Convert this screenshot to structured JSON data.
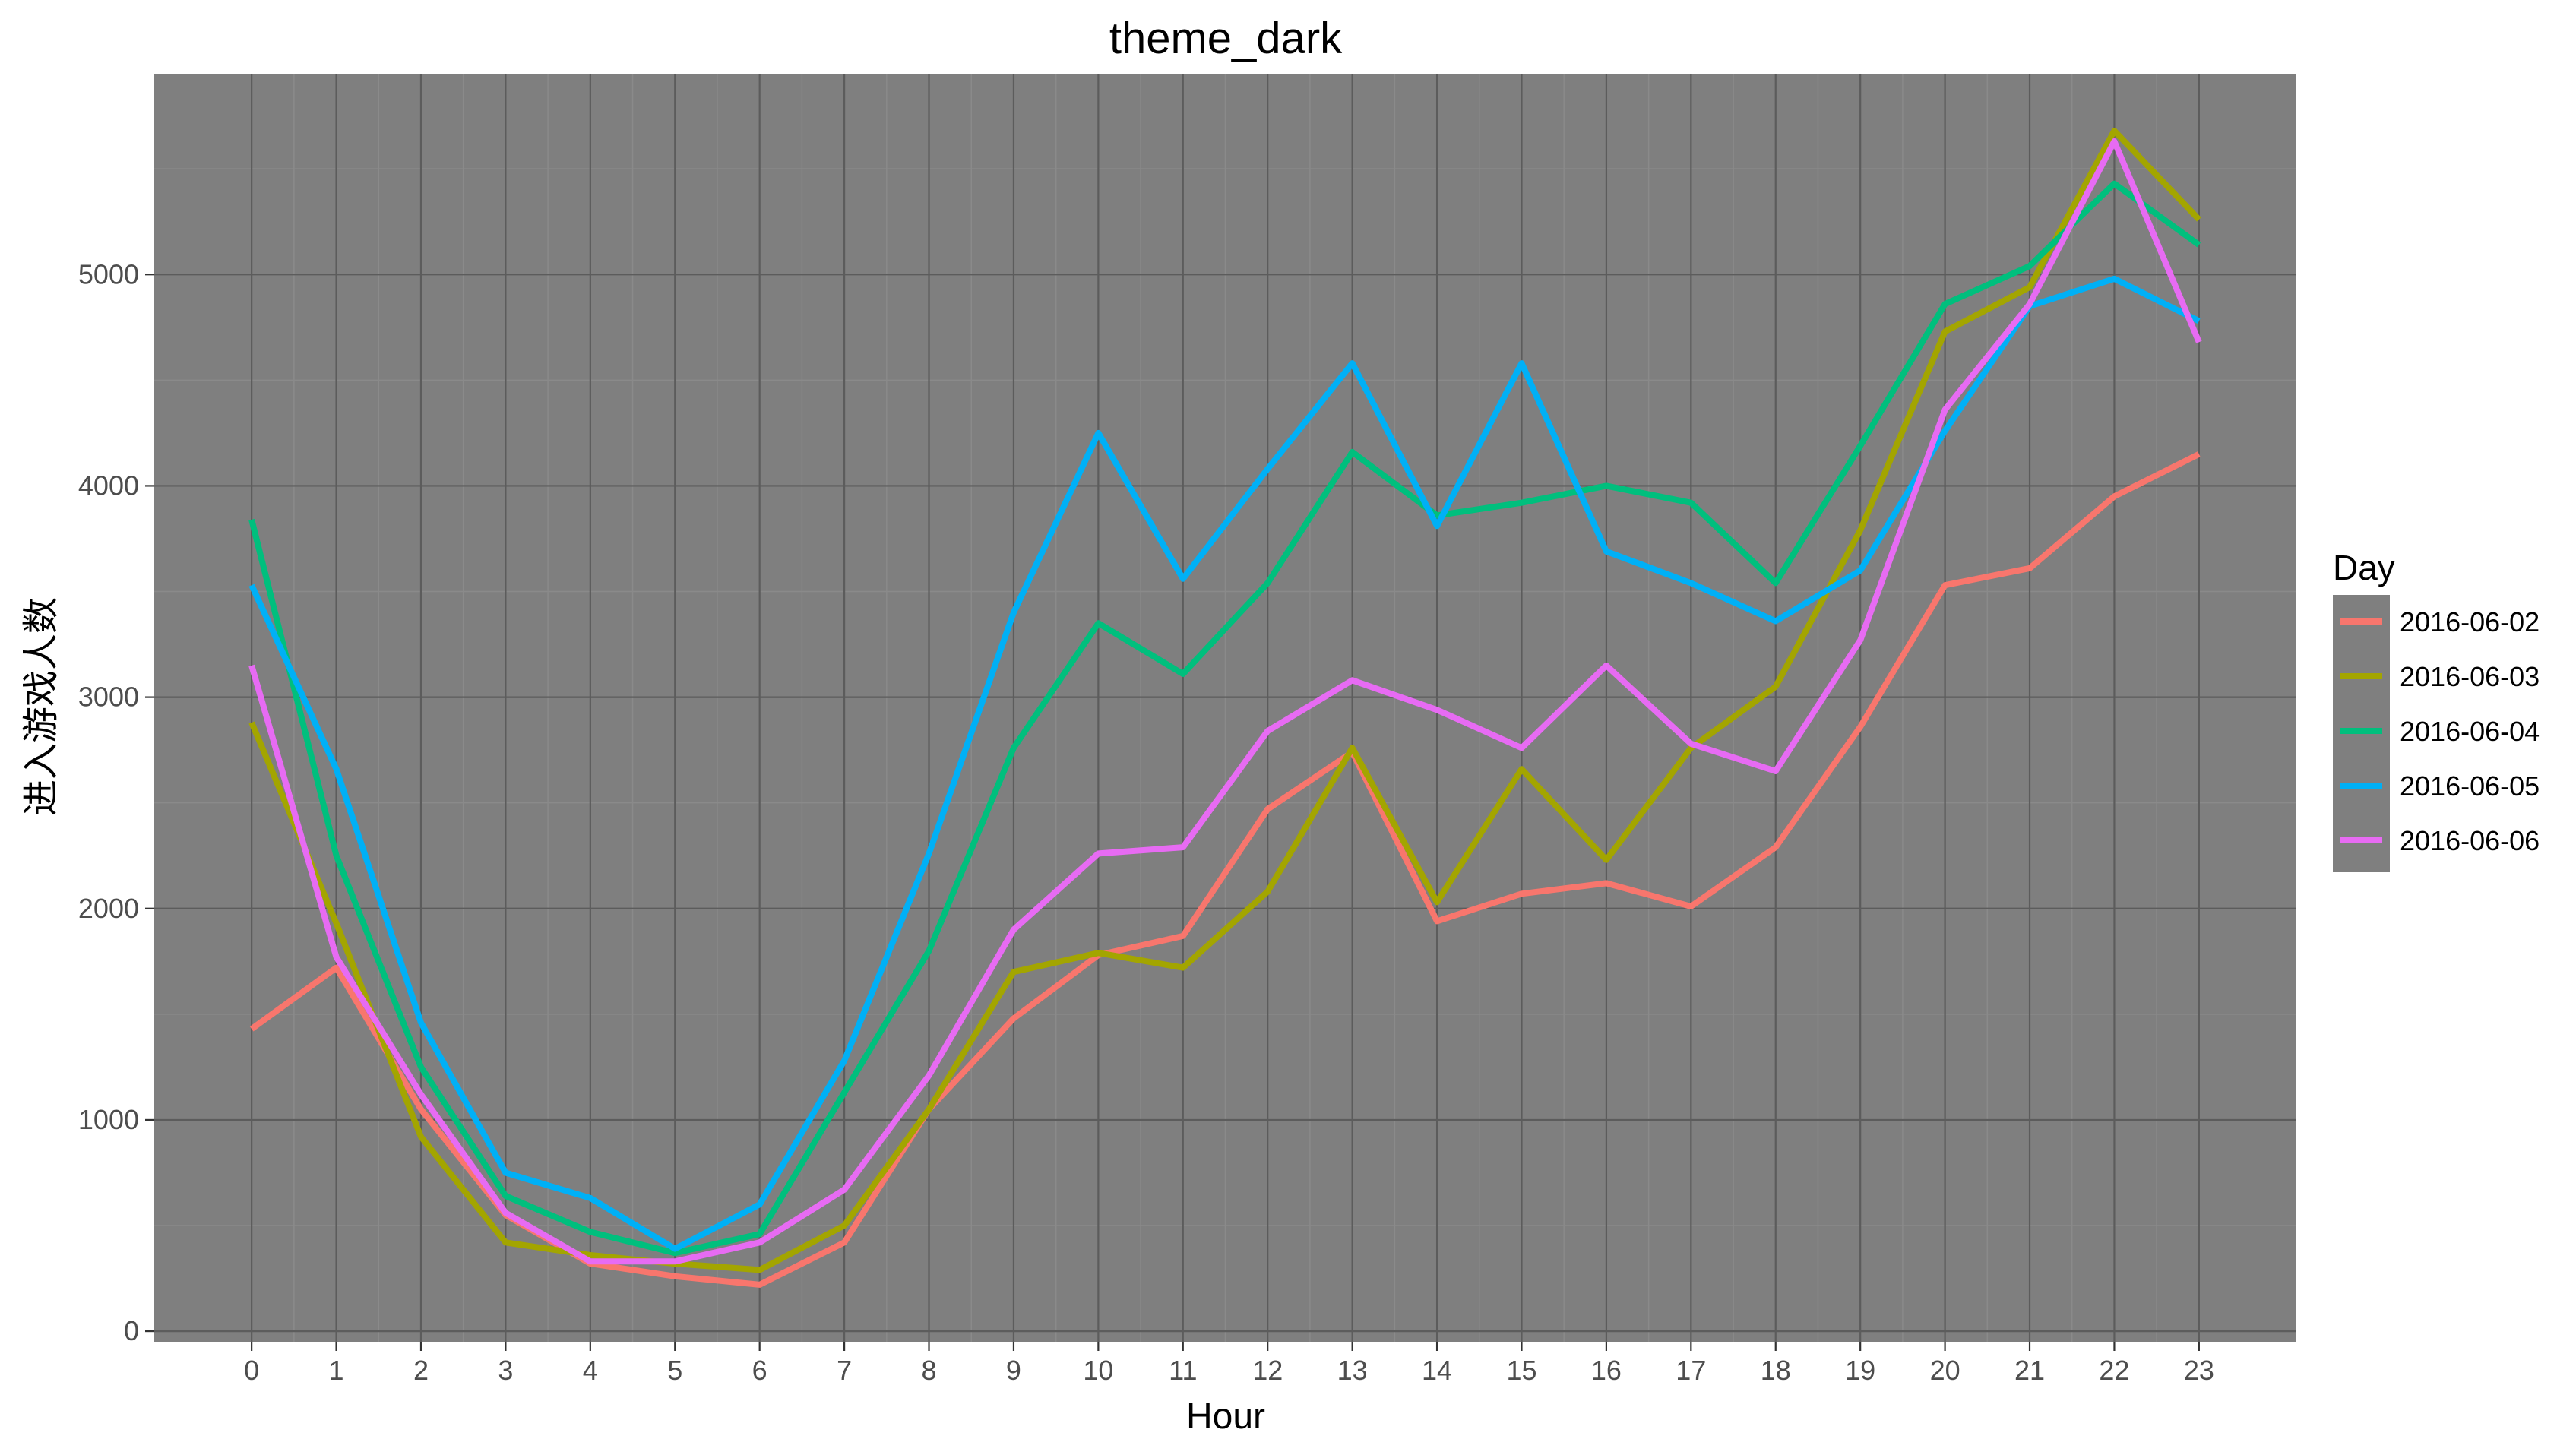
{
  "chart_data": {
    "type": "line",
    "title": "theme_dark",
    "xlabel": "Hour",
    "ylabel": "进入游戏人数",
    "x": [
      0,
      1,
      2,
      3,
      4,
      5,
      6,
      7,
      8,
      9,
      10,
      11,
      12,
      13,
      14,
      15,
      16,
      17,
      18,
      19,
      20,
      21,
      22,
      23
    ],
    "xticks": [
      "0",
      "1",
      "2",
      "3",
      "4",
      "5",
      "6",
      "7",
      "8",
      "9",
      "10",
      "11",
      "12",
      "13",
      "14",
      "15",
      "16",
      "17",
      "18",
      "19",
      "20",
      "21",
      "22",
      "23"
    ],
    "yticks": [
      "0",
      "1000",
      "2000",
      "3000",
      "4000",
      "5000"
    ],
    "xlim": [
      -1.15,
      24.15
    ],
    "ylim": [
      -50,
      5950
    ],
    "grid": true,
    "legend": {
      "title": "Day",
      "position": "right"
    },
    "background": "#7f7f7f",
    "series": [
      {
        "name": "2016-06-02",
        "color": "#F8766D",
        "values": [
          1430,
          1720,
          1050,
          550,
          320,
          260,
          220,
          420,
          1050,
          1480,
          1780,
          1870,
          2470,
          2740,
          1940,
          2070,
          2120,
          2010,
          2290,
          2860,
          3530,
          3610,
          3950,
          4150
        ]
      },
      {
        "name": "2016-06-03",
        "color": "#A3A500",
        "values": [
          2880,
          1930,
          920,
          420,
          360,
          320,
          290,
          500,
          1050,
          1700,
          1790,
          1720,
          2080,
          2760,
          2030,
          2660,
          2230,
          2760,
          3050,
          3790,
          4730,
          4940,
          5680,
          5260
        ]
      },
      {
        "name": "2016-06-04",
        "color": "#00BF7D",
        "values": [
          3840,
          2250,
          1250,
          640,
          470,
          370,
          460,
          1130,
          1800,
          2760,
          3350,
          3110,
          3540,
          4160,
          3860,
          3920,
          4000,
          3920,
          3540,
          4190,
          4860,
          5040,
          5430,
          5140
        ]
      },
      {
        "name": "2016-06-05",
        "color": "#00B0F6",
        "values": [
          3530,
          2660,
          1460,
          750,
          630,
          390,
          600,
          1280,
          2260,
          3400,
          4250,
          3560,
          4080,
          4580,
          3810,
          4580,
          3690,
          3540,
          3360,
          3600,
          4260,
          4850,
          4980,
          4780
        ]
      },
      {
        "name": "2016-06-06",
        "color": "#E76BF3",
        "values": [
          3150,
          1770,
          1120,
          560,
          330,
          330,
          420,
          670,
          1210,
          1900,
          2260,
          2290,
          2840,
          3080,
          2940,
          2760,
          3150,
          2780,
          2650,
          3270,
          4360,
          4860,
          5630,
          4680
        ]
      }
    ]
  }
}
